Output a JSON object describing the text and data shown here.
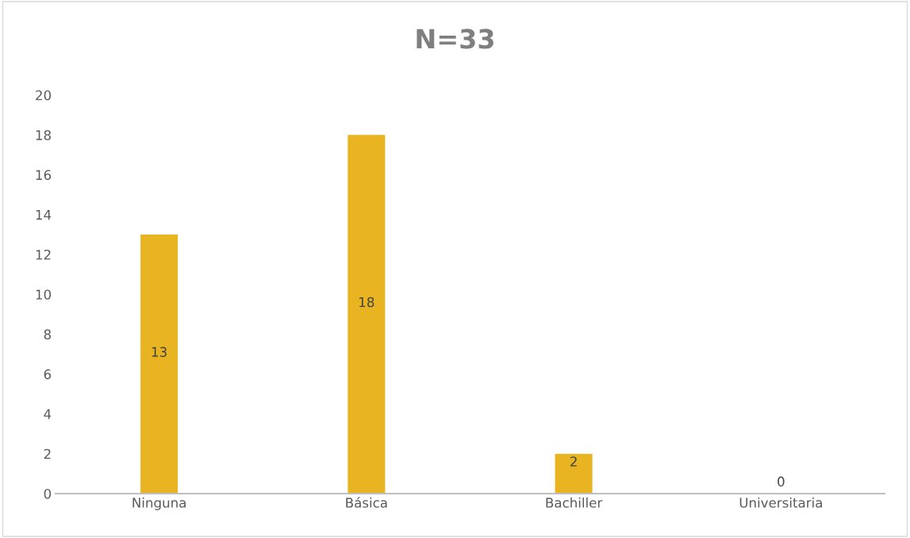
{
  "chart_data": {
    "type": "bar",
    "title": "N=33",
    "categories": [
      "Ninguna",
      "Básica",
      "Bachiller",
      "Universitaria"
    ],
    "values": [
      13,
      18,
      2,
      0
    ],
    "color": "#e8b422",
    "ylim": [
      0,
      20
    ],
    "yticks": [
      0,
      2,
      4,
      6,
      8,
      10,
      12,
      14,
      16,
      18,
      20
    ],
    "grid": false,
    "data_labels": true
  }
}
